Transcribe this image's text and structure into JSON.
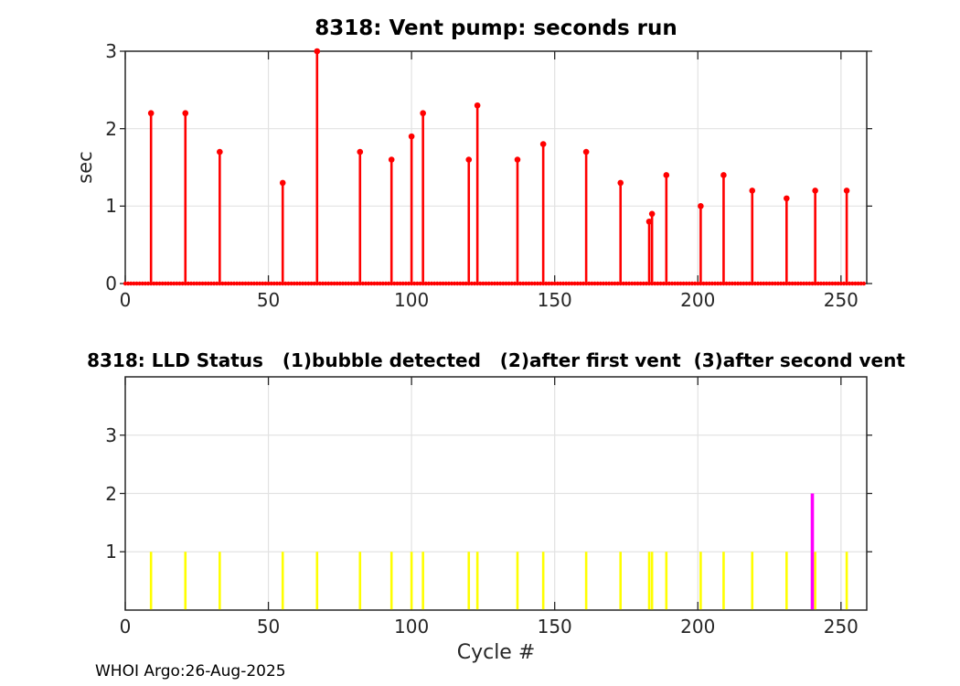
{
  "figure": {
    "footer": "WHOI Argo:26-Aug-2025",
    "colors": {
      "axes": "#262626",
      "grid": "#e2e2e2",
      "tick_label": "#262626",
      "stem": "#ff0000",
      "status1": "#ffff00",
      "status2": "#ff00ff"
    }
  },
  "chart_data": [
    {
      "type": "stem",
      "title": "8318: Vent pump: seconds run",
      "ylabel": "sec",
      "xlim": [
        0,
        259
      ],
      "ylim": [
        0,
        3
      ],
      "xticks": [
        0,
        50,
        100,
        150,
        200,
        250
      ],
      "yticks": [
        0,
        1,
        2,
        3
      ],
      "grid": true,
      "stem_color": "#ff0000",
      "x": [
        9,
        21,
        33,
        55,
        67,
        82,
        93,
        100,
        104,
        120,
        123,
        137,
        146,
        161,
        173,
        183,
        184,
        189,
        201,
        209,
        219,
        231,
        241,
        252
      ],
      "y": [
        2.2,
        2.2,
        1.7,
        1.3,
        3.0,
        1.7,
        1.6,
        1.9,
        2.2,
        1.6,
        2.3,
        1.6,
        1.8,
        1.7,
        1.3,
        0.8,
        0.9,
        1.4,
        1.0,
        1.4,
        1.2,
        1.1,
        1.2,
        1.2
      ],
      "baseline": {
        "x_start": 0,
        "x_end": 258,
        "y": 0,
        "note": "all other cycles have 0 sec (marker dots along baseline)"
      }
    },
    {
      "type": "bar",
      "title": "8318: LLD Status   (1)bubble detected   (2)after first vent  (3)after second vent",
      "xlabel": "Cycle #",
      "xlim": [
        0,
        259
      ],
      "ylim": [
        0,
        4
      ],
      "xticks": [
        0,
        50,
        100,
        150,
        200,
        250
      ],
      "yticks": [
        1,
        2,
        3
      ],
      "grid": true,
      "series": [
        {
          "name": "status 1 - bubble detected",
          "color": "#ffff00",
          "value": 1,
          "cycles": [
            9,
            21,
            33,
            55,
            67,
            82,
            93,
            100,
            104,
            120,
            123,
            137,
            146,
            161,
            173,
            183,
            184,
            189,
            201,
            209,
            219,
            231,
            241,
            252
          ]
        },
        {
          "name": "status 2 - after first vent",
          "color": "#ff00ff",
          "value": 2,
          "cycles": [
            240
          ]
        }
      ]
    }
  ]
}
